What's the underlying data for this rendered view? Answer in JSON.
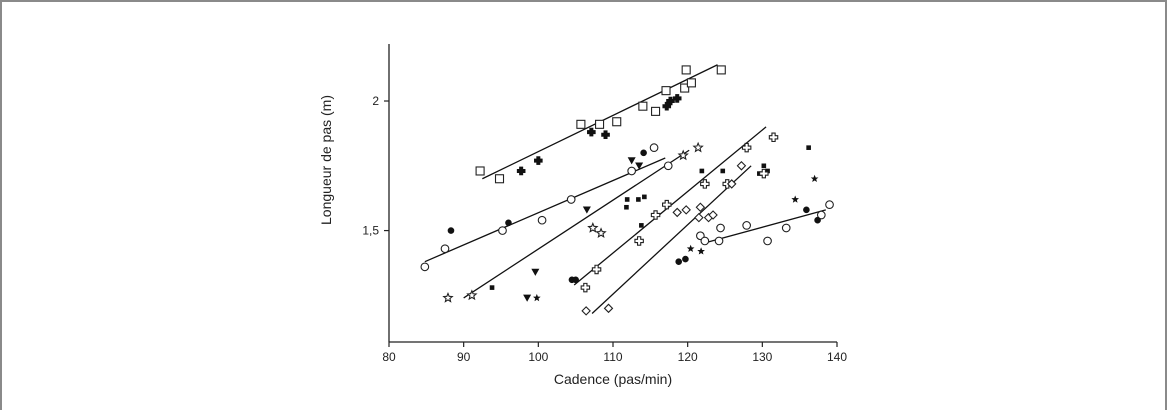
{
  "chart_data": {
    "type": "scatter",
    "title": "",
    "xlabel": "Cadence (pas/min)",
    "ylabel": "Longueur de pas (m)",
    "xlim": [
      80,
      140
    ],
    "ylim": [
      1.07,
      2.22
    ],
    "xticks": [
      "80",
      "90",
      "100",
      "110",
      "120",
      "130",
      "140"
    ],
    "xtick_values": [
      80,
      90,
      100,
      110,
      120,
      130,
      140
    ],
    "yticks": [
      "1,5",
      "2"
    ],
    "ytick_values": [
      1.5,
      2.0
    ],
    "grid": false,
    "legend": "none",
    "series": [
      {
        "marker": "open-square",
        "points": [
          [
            92.2,
            1.73
          ],
          [
            94.8,
            1.7
          ],
          [
            105.7,
            1.91
          ],
          [
            108.2,
            1.91
          ],
          [
            110.5,
            1.92
          ],
          [
            114.0,
            1.98
          ],
          [
            115.7,
            1.96
          ],
          [
            117.1,
            2.04
          ],
          [
            119.6,
            2.05
          ],
          [
            119.8,
            2.12
          ],
          [
            120.5,
            2.07
          ],
          [
            124.5,
            2.12
          ]
        ],
        "trend": [
          [
            92.5,
            1.7
          ],
          [
            124.0,
            2.14
          ]
        ]
      },
      {
        "marker": "filled-cross",
        "points": [
          [
            97.7,
            1.73
          ],
          [
            100.0,
            1.77
          ],
          [
            107.1,
            1.88
          ],
          [
            109.0,
            1.87
          ],
          [
            117.2,
            1.98
          ],
          [
            117.7,
            2.0
          ],
          [
            118.6,
            2.01
          ]
        ],
        "trend": null
      },
      {
        "marker": "open-circle",
        "points": [
          [
            84.8,
            1.36
          ],
          [
            87.5,
            1.43
          ],
          [
            95.2,
            1.5
          ],
          [
            100.5,
            1.54
          ],
          [
            104.4,
            1.62
          ],
          [
            112.5,
            1.73
          ],
          [
            115.5,
            1.82
          ],
          [
            117.4,
            1.75
          ],
          [
            121.7,
            1.48
          ],
          [
            122.3,
            1.46
          ],
          [
            124.2,
            1.46
          ],
          [
            124.4,
            1.51
          ],
          [
            127.9,
            1.52
          ],
          [
            130.7,
            1.46
          ],
          [
            133.2,
            1.51
          ],
          [
            137.9,
            1.56
          ],
          [
            139.0,
            1.6
          ]
        ],
        "trend": [
          [
            84.8,
            1.38
          ],
          [
            117.0,
            1.78
          ]
        ]
      },
      {
        "marker": "open-circle",
        "points": [],
        "trend": [
          [
            122.0,
            1.45
          ],
          [
            138.5,
            1.58
          ]
        ]
      },
      {
        "marker": "filled-circle",
        "points": [
          [
            88.3,
            1.5
          ],
          [
            96.0,
            1.53
          ],
          [
            104.5,
            1.31
          ],
          [
            105.0,
            1.31
          ],
          [
            114.1,
            1.8
          ],
          [
            118.8,
            1.38
          ],
          [
            119.7,
            1.39
          ],
          [
            135.9,
            1.58
          ],
          [
            137.4,
            1.54
          ]
        ],
        "trend": null
      },
      {
        "marker": "filled-triangle-down",
        "points": [
          [
            99.6,
            1.34
          ],
          [
            98.5,
            1.24
          ],
          [
            106.5,
            1.58
          ],
          [
            112.5,
            1.77
          ],
          [
            113.5,
            1.75
          ]
        ],
        "trend": null
      },
      {
        "marker": "open-star",
        "points": [
          [
            87.9,
            1.24
          ],
          [
            91.1,
            1.25
          ],
          [
            107.3,
            1.51
          ],
          [
            108.4,
            1.49
          ],
          [
            119.4,
            1.79
          ],
          [
            121.4,
            1.82
          ]
        ],
        "trend": [
          [
            90.0,
            1.24
          ],
          [
            120.2,
            1.81
          ]
        ]
      },
      {
        "marker": "small-filled-star",
        "points": [
          [
            99.8,
            1.24
          ],
          [
            120.4,
            1.43
          ],
          [
            121.8,
            1.42
          ],
          [
            134.4,
            1.62
          ],
          [
            137.0,
            1.7
          ]
        ],
        "trend": null
      },
      {
        "marker": "filled-square",
        "points": [
          [
            93.8,
            1.28
          ],
          [
            111.8,
            1.59
          ],
          [
            111.9,
            1.62
          ],
          [
            113.4,
            1.62
          ],
          [
            113.8,
            1.52
          ],
          [
            114.2,
            1.63
          ],
          [
            121.9,
            1.73
          ],
          [
            124.7,
            1.73
          ],
          [
            129.6,
            1.72
          ],
          [
            130.2,
            1.75
          ],
          [
            130.7,
            1.73
          ],
          [
            136.2,
            1.82
          ]
        ],
        "trend": null
      },
      {
        "marker": "open-cross",
        "points": [
          [
            106.3,
            1.28
          ],
          [
            107.8,
            1.35
          ],
          [
            113.5,
            1.46
          ],
          [
            115.7,
            1.56
          ],
          [
            117.2,
            1.6
          ],
          [
            122.3,
            1.68
          ],
          [
            125.3,
            1.68
          ],
          [
            127.9,
            1.82
          ],
          [
            130.2,
            1.72
          ],
          [
            131.5,
            1.86
          ]
        ],
        "trend": [
          [
            104.8,
            1.29
          ],
          [
            130.5,
            1.9
          ]
        ]
      },
      {
        "marker": "open-diamond",
        "points": [
          [
            106.4,
            1.19
          ],
          [
            109.4,
            1.2
          ],
          [
            118.6,
            1.57
          ],
          [
            119.8,
            1.58
          ],
          [
            121.5,
            1.55
          ],
          [
            121.7,
            1.59
          ],
          [
            122.8,
            1.55
          ],
          [
            123.4,
            1.56
          ],
          [
            125.9,
            1.68
          ],
          [
            127.2,
            1.75
          ]
        ],
        "trend": [
          [
            107.2,
            1.18
          ],
          [
            128.5,
            1.75
          ]
        ]
      }
    ]
  }
}
